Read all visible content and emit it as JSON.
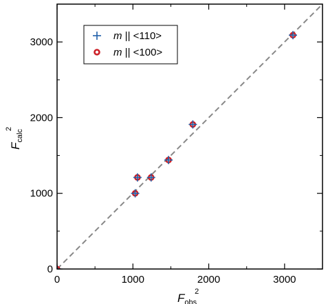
{
  "chart_data": {
    "type": "scatter",
    "xlim": [
      0,
      3500
    ],
    "ylim": [
      0,
      3500
    ],
    "x_ticks": [
      0,
      1000,
      2000,
      3000
    ],
    "y_ticks": [
      0,
      1000,
      2000,
      3000
    ],
    "x_tick_labels": [
      "0",
      "1000",
      "2000",
      "3000"
    ],
    "y_tick_labels": [
      "0",
      "1000",
      "2000",
      "3000"
    ],
    "x_minor_step": 500,
    "y_minor_step": 500,
    "xlabel": {
      "main": "F",
      "sub": "obs",
      "sup": "2"
    },
    "ylabel": {
      "main": "F",
      "sub": "calc",
      "sup": "2"
    },
    "reference_line": {
      "style": "dashed",
      "color": "#888888",
      "from": [
        0,
        0
      ],
      "to": [
        3500,
        3500
      ]
    },
    "legend": {
      "position": "top-left",
      "entries": [
        {
          "prefix": "m",
          "text": " || <110>"
        },
        {
          "prefix": "m",
          "text": " || <100>"
        }
      ]
    },
    "series": [
      {
        "marker": "plus",
        "color": "#1f5fa8",
        "points": [
          [
            0,
            0
          ],
          [
            1030,
            1000
          ],
          [
            1060,
            1210
          ],
          [
            1240,
            1210
          ],
          [
            1470,
            1440
          ],
          [
            1790,
            1910
          ],
          [
            3110,
            3090
          ]
        ]
      },
      {
        "marker": "circle-open",
        "color": "#cc2027",
        "points": [
          [
            0,
            0
          ],
          [
            1030,
            1000
          ],
          [
            1060,
            1210
          ],
          [
            1240,
            1210
          ],
          [
            1470,
            1440
          ],
          [
            1790,
            1910
          ],
          [
            3110,
            3090
          ]
        ]
      }
    ]
  }
}
